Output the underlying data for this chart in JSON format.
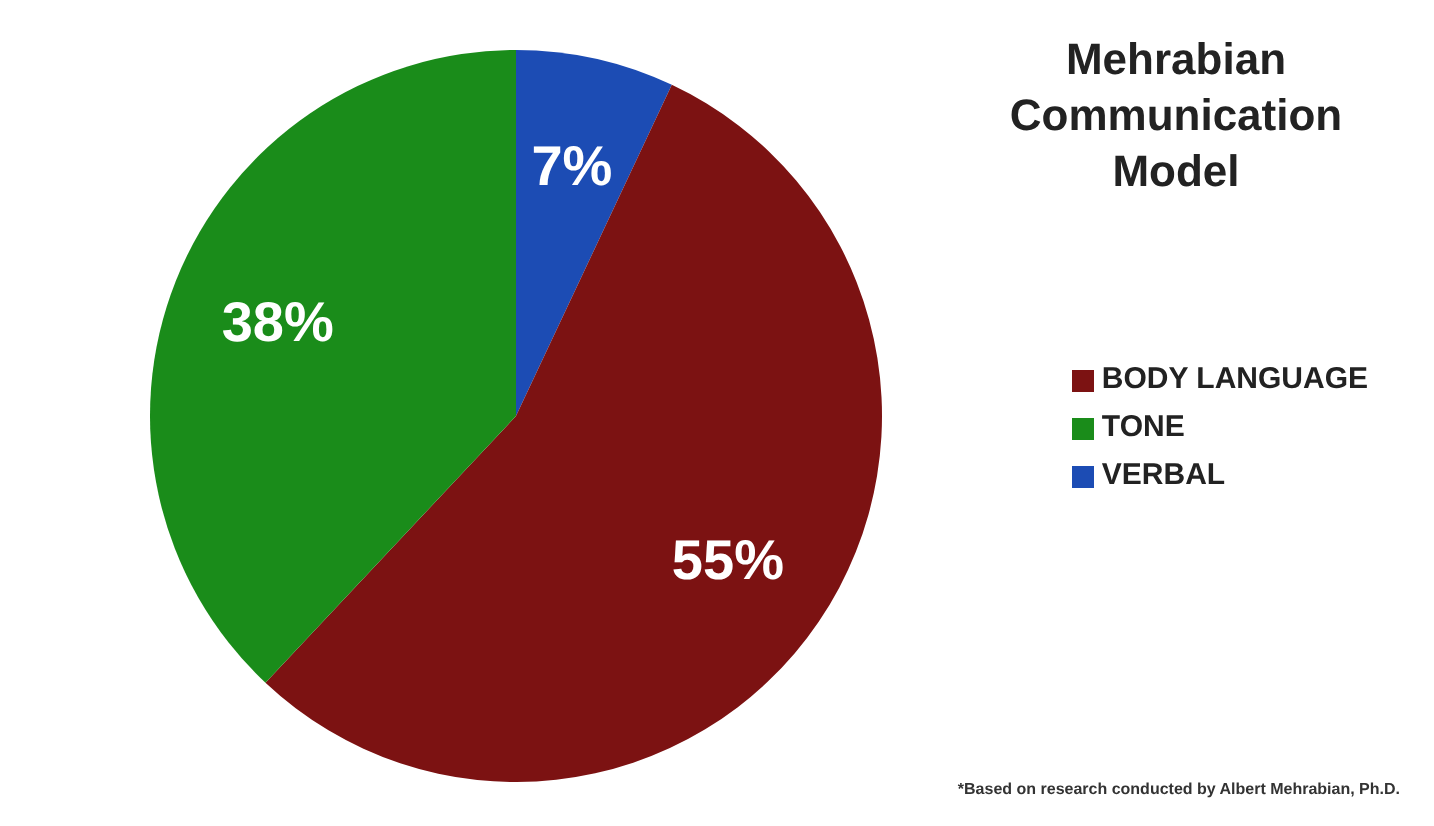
{
  "chart_data": {
    "type": "pie",
    "title": "Mehrabian Communication Model",
    "categories": [
      "VERBAL",
      "BODY LANGUAGE",
      "TONE"
    ],
    "values": [
      7,
      55,
      38
    ],
    "colors": [
      "#1c4cb4",
      "#7c1212",
      "#1a8c1a"
    ],
    "value_labels": [
      "7%",
      "55%",
      "38%"
    ],
    "legend": "right",
    "annotations": [
      "*Based on research conducted by Albert Mehrabian, Ph.D."
    ]
  }
}
